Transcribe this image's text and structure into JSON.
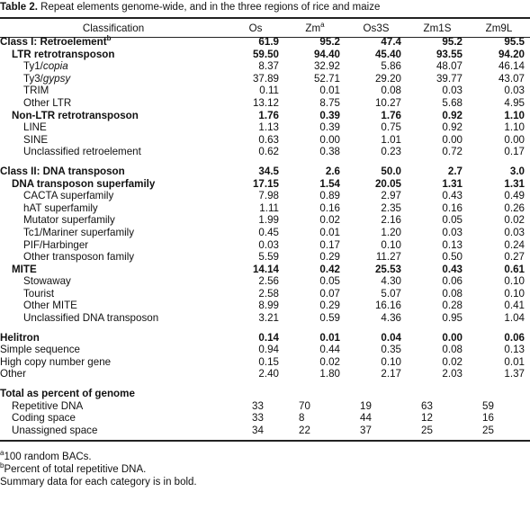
{
  "caption": {
    "label": "Table 2.",
    "title": "Repeat elements genome-wide, and in the three regions of rice and maize"
  },
  "columns": {
    "classification": "Classification",
    "os": "Os",
    "zm": "Zm",
    "zm_sup": "a",
    "os3s": "Os3S",
    "zm1s": "Zm1S",
    "zm9l": "Zm9L"
  },
  "rows": [
    {
      "label": "Class I: Retroelement",
      "sup": "b",
      "level": 0,
      "bold": true,
      "values": [
        "61.9",
        "95.2",
        "47.4",
        "95.2",
        "95.5"
      ]
    },
    {
      "label": "LTR retrotransposon",
      "level": 1,
      "bold": true,
      "values": [
        "59.50",
        "94.40",
        "45.40",
        "93.55",
        "94.20"
      ]
    },
    {
      "label": "Ty1/",
      "italic": "copia",
      "level": 2,
      "bold": false,
      "values": [
        "8.37",
        "32.92",
        "5.86",
        "48.07",
        "46.14"
      ]
    },
    {
      "label": "Ty3/",
      "italic": "gypsy",
      "level": 2,
      "bold": false,
      "values": [
        "37.89",
        "52.71",
        "29.20",
        "39.77",
        "43.07"
      ]
    },
    {
      "label": "TRIM",
      "level": 2,
      "bold": false,
      "values": [
        "0.11",
        "0.01",
        "0.08",
        "0.03",
        "0.03"
      ]
    },
    {
      "label": "Other LTR",
      "level": 2,
      "bold": false,
      "values": [
        "13.12",
        "8.75",
        "10.27",
        "5.68",
        "4.95"
      ]
    },
    {
      "label": "Non-LTR retrotransposon",
      "level": 1,
      "bold": true,
      "values": [
        "1.76",
        "0.39",
        "1.76",
        "0.92",
        "1.10"
      ]
    },
    {
      "label": "LINE",
      "level": 2,
      "bold": false,
      "values": [
        "1.13",
        "0.39",
        "0.75",
        "0.92",
        "1.10"
      ]
    },
    {
      "label": "SINE",
      "level": 2,
      "bold": false,
      "values": [
        "0.63",
        "0.00",
        "1.01",
        "0.00",
        "0.00"
      ]
    },
    {
      "label": "Unclassified retroelement",
      "level": 2,
      "bold": false,
      "values": [
        "0.62",
        "0.38",
        "0.23",
        "0.72",
        "0.17"
      ]
    },
    {
      "gap": true
    },
    {
      "label": "Class II: DNA transposon",
      "level": 0,
      "bold": true,
      "values": [
        "34.5",
        "2.6",
        "50.0",
        "2.7",
        "3.0"
      ]
    },
    {
      "label": "DNA transposon superfamily",
      "level": 1,
      "bold": true,
      "values": [
        "17.15",
        "1.54",
        "20.05",
        "1.31",
        "1.31"
      ]
    },
    {
      "label": "CACTA superfamily",
      "level": 2,
      "bold": false,
      "values": [
        "7.98",
        "0.89",
        "2.97",
        "0.43",
        "0.49"
      ]
    },
    {
      "label": "hAT superfamily",
      "level": 2,
      "bold": false,
      "values": [
        "1.11",
        "0.16",
        "2.35",
        "0.16",
        "0.26"
      ]
    },
    {
      "label": "Mutator superfamily",
      "level": 2,
      "bold": false,
      "values": [
        "1.99",
        "0.02",
        "2.16",
        "0.05",
        "0.02"
      ]
    },
    {
      "label": "Tc1/Mariner superfamily",
      "level": 2,
      "bold": false,
      "values": [
        "0.45",
        "0.01",
        "1.20",
        "0.03",
        "0.03"
      ]
    },
    {
      "label": "PIF/Harbinger",
      "level": 2,
      "bold": false,
      "values": [
        "0.03",
        "0.17",
        "0.10",
        "0.13",
        "0.24"
      ]
    },
    {
      "label": "Other transposon family",
      "level": 2,
      "bold": false,
      "values": [
        "5.59",
        "0.29",
        "11.27",
        "0.50",
        "0.27"
      ]
    },
    {
      "label": "MITE",
      "level": 1,
      "bold": true,
      "values": [
        "14.14",
        "0.42",
        "25.53",
        "0.43",
        "0.61"
      ]
    },
    {
      "label": "Stowaway",
      "level": 2,
      "bold": false,
      "values": [
        "2.56",
        "0.05",
        "4.30",
        "0.06",
        "0.10"
      ]
    },
    {
      "label": "Tourist",
      "level": 2,
      "bold": false,
      "values": [
        "2.58",
        "0.07",
        "5.07",
        "0.08",
        "0.10"
      ]
    },
    {
      "label": "Other MITE",
      "level": 2,
      "bold": false,
      "values": [
        "8.99",
        "0.29",
        "16.16",
        "0.28",
        "0.41"
      ]
    },
    {
      "label": "Unclassified DNA transposon",
      "level": 2,
      "bold": false,
      "values": [
        "3.21",
        "0.59",
        "4.36",
        "0.95",
        "1.04"
      ]
    },
    {
      "gap": true
    },
    {
      "label": "Helitron",
      "level": 0,
      "bold": true,
      "values": [
        "0.14",
        "0.01",
        "0.04",
        "0.00",
        "0.06"
      ]
    },
    {
      "label": "Simple sequence",
      "level": 0,
      "bold": false,
      "values": [
        "0.94",
        "0.44",
        "0.35",
        "0.08",
        "0.13"
      ]
    },
    {
      "label": "High copy number gene",
      "level": 0,
      "bold": false,
      "values": [
        "0.15",
        "0.02",
        "0.10",
        "0.02",
        "0.01"
      ]
    },
    {
      "label": "Other",
      "level": 0,
      "bold": false,
      "values": [
        "2.40",
        "1.80",
        "2.17",
        "2.03",
        "1.37"
      ]
    },
    {
      "gap": true
    },
    {
      "label": "Total as percent of genome",
      "level": 0,
      "bold": true,
      "values": [
        "",
        "",
        "",
        "",
        ""
      ]
    },
    {
      "label": "Repetitive DNA",
      "level": 1,
      "bold": false,
      "left": true,
      "values": [
        "33",
        "70",
        "19",
        "63",
        "59"
      ]
    },
    {
      "label": "Coding space",
      "level": 1,
      "bold": false,
      "left": true,
      "values": [
        "33",
        "8",
        "44",
        "12",
        "16"
      ]
    },
    {
      "label": "Unassigned space",
      "level": 1,
      "bold": false,
      "left": true,
      "values": [
        "34",
        "22",
        "37",
        "25",
        "25"
      ]
    }
  ],
  "footnotes": [
    {
      "sup": "a",
      "text": "100 random BACs."
    },
    {
      "sup": "b",
      "text": "Percent of total repetitive DNA."
    },
    {
      "sup": "",
      "text": "Summary data for each category is in bold."
    }
  ]
}
